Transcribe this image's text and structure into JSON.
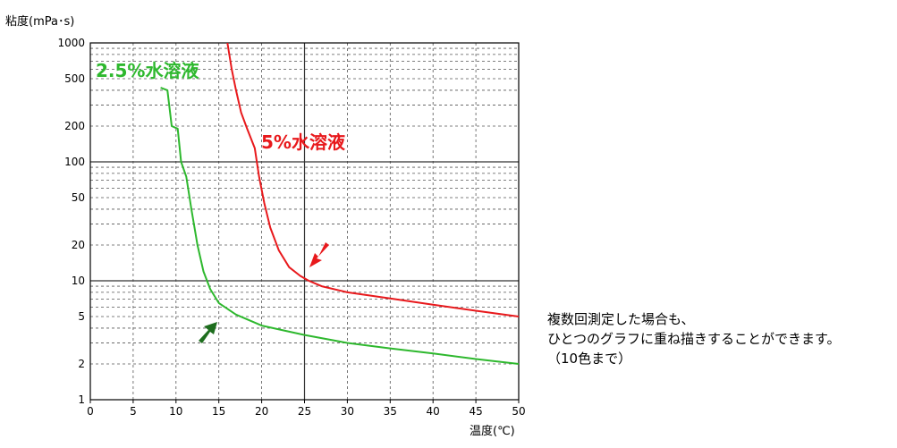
{
  "chart_data": {
    "type": "line",
    "ylabel": "粘度(mPa･s)",
    "xlabel": "温度(℃)",
    "xlim": [
      0,
      50
    ],
    "ylim": [
      1,
      1000
    ],
    "yscale": "log",
    "grid": true,
    "x_ticks": [
      "0",
      "5",
      "10",
      "15",
      "20",
      "25",
      "30",
      "35",
      "40",
      "45",
      "50"
    ],
    "y_ticks": [
      {
        "value": 1,
        "label": "1"
      },
      {
        "value": 2,
        "label": "2"
      },
      {
        "value": 5,
        "label": "5"
      },
      {
        "value": 10,
        "label": "10"
      },
      {
        "value": 20,
        "label": "20"
      },
      {
        "value": 50,
        "label": "50"
      },
      {
        "value": 100,
        "label": "100"
      },
      {
        "value": 200,
        "label": "200"
      },
      {
        "value": 500,
        "label": "500"
      },
      {
        "value": 1000,
        "label": "1000"
      }
    ],
    "series": [
      {
        "name": "5%水溶液",
        "color": "#e8191c",
        "points": [
          [
            16.0,
            1000
          ],
          [
            16.5,
            600
          ],
          [
            17.0,
            400
          ],
          [
            17.6,
            260
          ],
          [
            18.3,
            190
          ],
          [
            19.2,
            130
          ],
          [
            19.7,
            75
          ],
          [
            20.3,
            45
          ],
          [
            21.0,
            28
          ],
          [
            22.0,
            18
          ],
          [
            23.2,
            13
          ],
          [
            24.5,
            11
          ],
          [
            25.5,
            10
          ],
          [
            27.0,
            9
          ],
          [
            30.0,
            8
          ],
          [
            35.0,
            7.1
          ],
          [
            40.0,
            6.3
          ],
          [
            45.0,
            5.6
          ],
          [
            50.0,
            5.0
          ]
        ]
      },
      {
        "name": "2.5%水溶液",
        "color": "#2eb82e",
        "points": [
          [
            8.2,
            420
          ],
          [
            9.0,
            400
          ],
          [
            9.5,
            200
          ],
          [
            10.2,
            190
          ],
          [
            10.6,
            100
          ],
          [
            11.2,
            75
          ],
          [
            11.8,
            40
          ],
          [
            12.5,
            20
          ],
          [
            13.2,
            12
          ],
          [
            14.0,
            8.5
          ],
          [
            15.0,
            6.5
          ],
          [
            17.0,
            5.2
          ],
          [
            20.0,
            4.2
          ],
          [
            25.0,
            3.5
          ],
          [
            30.0,
            3.0
          ],
          [
            35.0,
            2.7
          ],
          [
            40.0,
            2.45
          ],
          [
            45.0,
            2.2
          ],
          [
            50.0,
            2.0
          ]
        ]
      }
    ]
  },
  "note": {
    "line1": "複数回測定した場合も、",
    "line2": "ひとつのグラフに重ね描きすることができます。",
    "line3": "（10色まで）"
  }
}
